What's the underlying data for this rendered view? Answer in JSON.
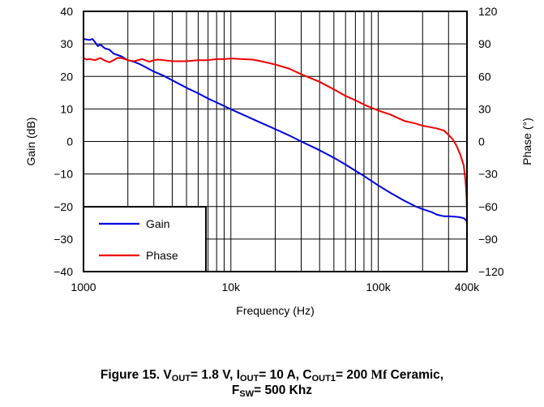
{
  "chart_data": {
    "type": "line",
    "title": "",
    "xlabel": "Frequency (Hz)",
    "ylabel": "Gain (dB)",
    "y2label": "Phase (°)",
    "x_scale": "log",
    "xlim": [
      1000,
      400000
    ],
    "ylim": [
      -40,
      40
    ],
    "y2lim": [
      -120,
      120
    ],
    "grid": true,
    "legend_position": "bottom-left",
    "x_ticks": [
      {
        "value": 1000,
        "label": "1000"
      },
      {
        "value": 10000,
        "label": "10k"
      },
      {
        "value": 100000,
        "label": "100k"
      },
      {
        "value": 400000,
        "label": "400k"
      }
    ],
    "y_ticks": [
      {
        "value": 40,
        "label": "40"
      },
      {
        "value": 30,
        "label": "30"
      },
      {
        "value": 20,
        "label": "20"
      },
      {
        "value": 10,
        "label": "10"
      },
      {
        "value": 0,
        "label": "0"
      },
      {
        "value": -10,
        "label": "−10"
      },
      {
        "value": -20,
        "label": "−20"
      },
      {
        "value": -30,
        "label": "−30"
      },
      {
        "value": -40,
        "label": "−40"
      }
    ],
    "y2_ticks": [
      {
        "value": 120,
        "label": "120"
      },
      {
        "value": 90,
        "label": "90"
      },
      {
        "value": 60,
        "label": "60"
      },
      {
        "value": 30,
        "label": "30"
      },
      {
        "value": 0,
        "label": "0"
      },
      {
        "value": -30,
        "label": "−30"
      },
      {
        "value": -60,
        "label": "−60"
      },
      {
        "value": -90,
        "label": "−90"
      },
      {
        "value": -120,
        "label": "−120"
      }
    ],
    "series": [
      {
        "name": "Gain",
        "axis": "left",
        "color": "#0000dd",
        "points": [
          [
            1000,
            31.5
          ],
          [
            1100,
            31.2
          ],
          [
            1150,
            31.5
          ],
          [
            1200,
            30.5
          ],
          [
            1250,
            29.3
          ],
          [
            1300,
            29.8
          ],
          [
            1400,
            28.6
          ],
          [
            1500,
            28.2
          ],
          [
            1600,
            27.0
          ],
          [
            1800,
            26.2
          ],
          [
            2000,
            25.0
          ],
          [
            2200,
            24.5
          ],
          [
            2400,
            23.8
          ],
          [
            2600,
            23.0
          ],
          [
            3000,
            21.5
          ],
          [
            3500,
            20.2
          ],
          [
            4000,
            18.8
          ],
          [
            5000,
            16.5
          ],
          [
            6000,
            14.8
          ],
          [
            7000,
            13.2
          ],
          [
            8000,
            12.0
          ],
          [
            10000,
            9.9
          ],
          [
            12000,
            8.3
          ],
          [
            15000,
            6.3
          ],
          [
            20000,
            3.8
          ],
          [
            25000,
            1.8
          ],
          [
            30000,
            0.0
          ],
          [
            40000,
            -2.7
          ],
          [
            50000,
            -5.0
          ],
          [
            60000,
            -7.1
          ],
          [
            70000,
            -9.0
          ],
          [
            80000,
            -10.6
          ],
          [
            100000,
            -13.5
          ],
          [
            120000,
            -15.7
          ],
          [
            150000,
            -18.2
          ],
          [
            180000,
            -20.0
          ],
          [
            200000,
            -20.8
          ],
          [
            230000,
            -21.7
          ],
          [
            250000,
            -22.5
          ],
          [
            280000,
            -23.0
          ],
          [
            300000,
            -23.0
          ],
          [
            330000,
            -23.1
          ],
          [
            360000,
            -23.3
          ],
          [
            380000,
            -23.6
          ],
          [
            395000,
            -24.2
          ],
          [
            400000,
            -25.0
          ]
        ]
      },
      {
        "name": "Phase",
        "axis": "right",
        "color": "#ee0000",
        "points": [
          [
            1000,
            77
          ],
          [
            1050,
            75.5
          ],
          [
            1100,
            76
          ],
          [
            1200,
            75
          ],
          [
            1300,
            77
          ],
          [
            1400,
            74.5
          ],
          [
            1500,
            73
          ],
          [
            1600,
            75
          ],
          [
            1700,
            77
          ],
          [
            1800,
            77
          ],
          [
            1900,
            76
          ],
          [
            2000,
            75
          ],
          [
            2200,
            74
          ],
          [
            2500,
            76
          ],
          [
            2800,
            73.5
          ],
          [
            3000,
            75
          ],
          [
            3200,
            75.5
          ],
          [
            3500,
            75
          ],
          [
            4000,
            74
          ],
          [
            5000,
            74
          ],
          [
            6000,
            75
          ],
          [
            7000,
            75
          ],
          [
            8000,
            76
          ],
          [
            9000,
            76
          ],
          [
            10000,
            76.5
          ],
          [
            12000,
            76
          ],
          [
            14000,
            75.5
          ],
          [
            16000,
            74
          ],
          [
            20000,
            71
          ],
          [
            25000,
            67
          ],
          [
            30000,
            62
          ],
          [
            40000,
            55
          ],
          [
            50000,
            48
          ],
          [
            60000,
            42
          ],
          [
            70000,
            38
          ],
          [
            80000,
            34
          ],
          [
            100000,
            28.5
          ],
          [
            120000,
            25
          ],
          [
            150000,
            19
          ],
          [
            180000,
            16.5
          ],
          [
            200000,
            14.5
          ],
          [
            220000,
            13.5
          ],
          [
            250000,
            12
          ],
          [
            280000,
            10
          ],
          [
            300000,
            6
          ],
          [
            320000,
            2
          ],
          [
            340000,
            -4
          ],
          [
            360000,
            -12
          ],
          [
            380000,
            -22
          ],
          [
            390000,
            -35
          ],
          [
            397000,
            -50
          ],
          [
            400000,
            -65
          ]
        ]
      }
    ]
  },
  "caption": {
    "line1": [
      {
        "text": "Figure 15. V",
        "sub": false
      },
      {
        "text": "OUT",
        "sub": true
      },
      {
        "text": "= 1.8 V, I",
        "sub": false
      },
      {
        "text": "OUT",
        "sub": true
      },
      {
        "text": "= 10 A, C",
        "sub": false
      },
      {
        "text": "OUT1",
        "sub": true
      },
      {
        "text": "= 200 ",
        "sub": false
      },
      {
        "text": "Mf",
        "sub": false,
        "serif": true
      },
      {
        "text": " Ceramic,",
        "sub": false
      }
    ],
    "line2": [
      {
        "text": "F",
        "sub": false
      },
      {
        "text": "SW",
        "sub": true
      },
      {
        "text": "= 500 Khz",
        "sub": false
      }
    ]
  }
}
